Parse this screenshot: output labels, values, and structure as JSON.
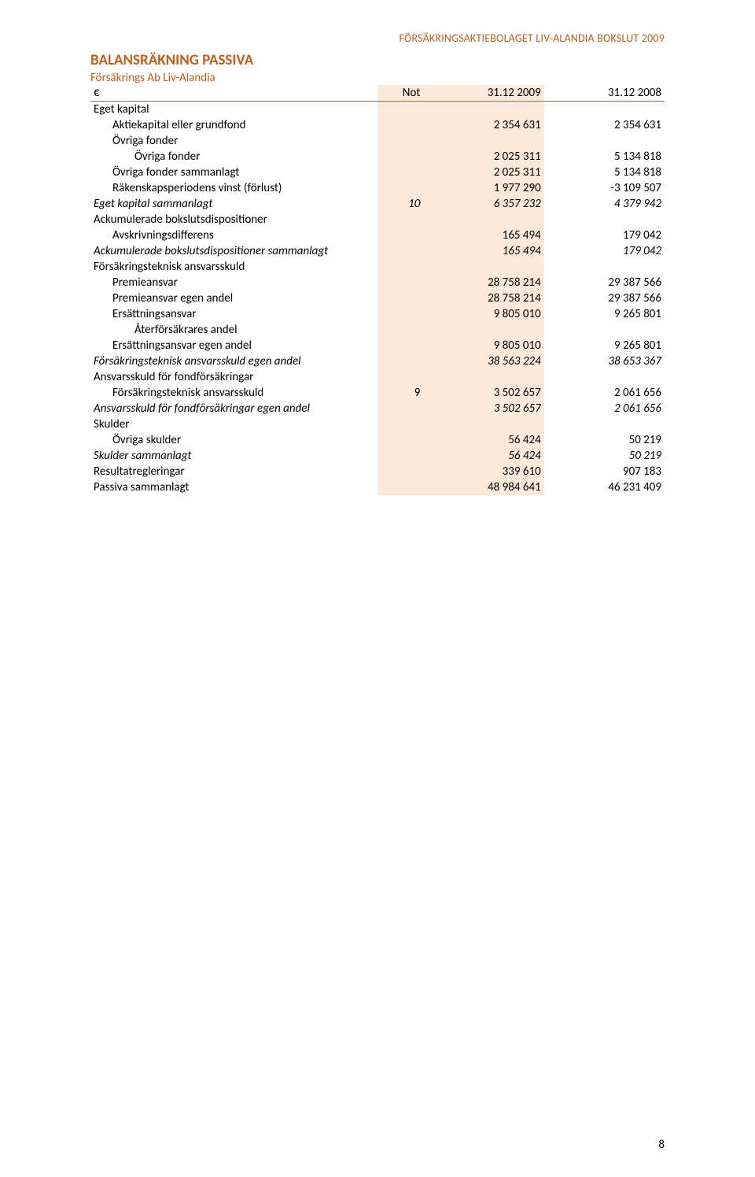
{
  "header_right": "FÖRSÄKRINGSAKTIEBOLAGET LIV-ALANDIA BOKSLUT 2009",
  "title": "BALANSRÄKNING PASSIVA",
  "subtitle": "Försäkrings Ab Liv-Alandia",
  "columns": {
    "currency": "€",
    "not": "Not",
    "c1": "31.12 2009",
    "c2": "31.12 2008"
  },
  "page_number": "8",
  "r": {
    "eget_kapital_hdr": "Eget kapital",
    "aktiekapital": {
      "label": "Aktiekapital eller grundfond",
      "c1": "2 354 631",
      "c2": "2 354 631"
    },
    "ovriga_fonder_hdr": "Övriga fonder",
    "ovriga_fonder": {
      "label": "Övriga fonder",
      "c1": "2 025 311",
      "c2": "5 134 818"
    },
    "ovriga_fonder_sum": {
      "label": "Övriga fonder sammanlagt",
      "c1": "2 025 311",
      "c2": "5 134 818"
    },
    "rakenskap": {
      "label": "Räkenskapsperiodens vinst (förlust)",
      "c1": "1 977 290",
      "c2": "-3 109 507"
    },
    "eget_kapital_sum": {
      "label": "Eget kapital sammanlagt",
      "not": "10",
      "c1": "6 357 232",
      "c2": "4 379 942"
    },
    "ack_hdr": "Ackumulerade bokslutsdispositioner",
    "avskriv": {
      "label": "Avskrivningsdifferens",
      "c1": "165 494",
      "c2": "179 042"
    },
    "ack_sum": {
      "label": "Ackumulerade bokslutsdispositioner sammanlagt",
      "c1": "165 494",
      "c2": "179 042"
    },
    "ft_hdr": "Försäkringsteknisk ansvarsskuld",
    "premie": {
      "label": "Premieansvar",
      "c1": "28 758 214",
      "c2": "29 387 566"
    },
    "premie_egen": {
      "label": "Premieansvar egen andel",
      "c1": "28 758 214",
      "c2": "29 387 566"
    },
    "ersatt": {
      "label": "Ersättningsansvar",
      "c1": "9 805 010",
      "c2": "9 265 801"
    },
    "aterfor": {
      "label": "Återförsäkrares andel"
    },
    "ersatt_egen": {
      "label": "Ersättningsansvar egen andel",
      "c1": "9 805 010",
      "c2": "9 265 801"
    },
    "ft_sum": {
      "label": "Försäkringsteknisk ansvarsskuld egen andel",
      "c1": "38 563 224",
      "c2": "38 653 367"
    },
    "fond_hdr": "Ansvarsskuld för fondförsäkringar",
    "fond_ft": {
      "label": "Försäkringsteknisk ansvarsskuld",
      "not": "9",
      "c1": "3 502 657",
      "c2": "2 061 656"
    },
    "fond_sum": {
      "label": "Ansvarsskuld för fondförsäkringar egen andel",
      "c1": "3 502 657",
      "c2": "2 061 656"
    },
    "skulder_hdr": "Skulder",
    "ovriga_skulder": {
      "label": "Övriga skulder",
      "c1": "56 424",
      "c2": "50 219"
    },
    "skulder_sum": {
      "label": "Skulder sammanlagt",
      "c1": "56 424",
      "c2": "50 219"
    },
    "resultatreg": {
      "label": "Resultatregleringar",
      "c1": "339 610",
      "c2": "907 183"
    },
    "passiva_sum": {
      "label": "Passiva sammanlagt",
      "c1": "48 984 641",
      "c2": "46 231 409"
    }
  }
}
